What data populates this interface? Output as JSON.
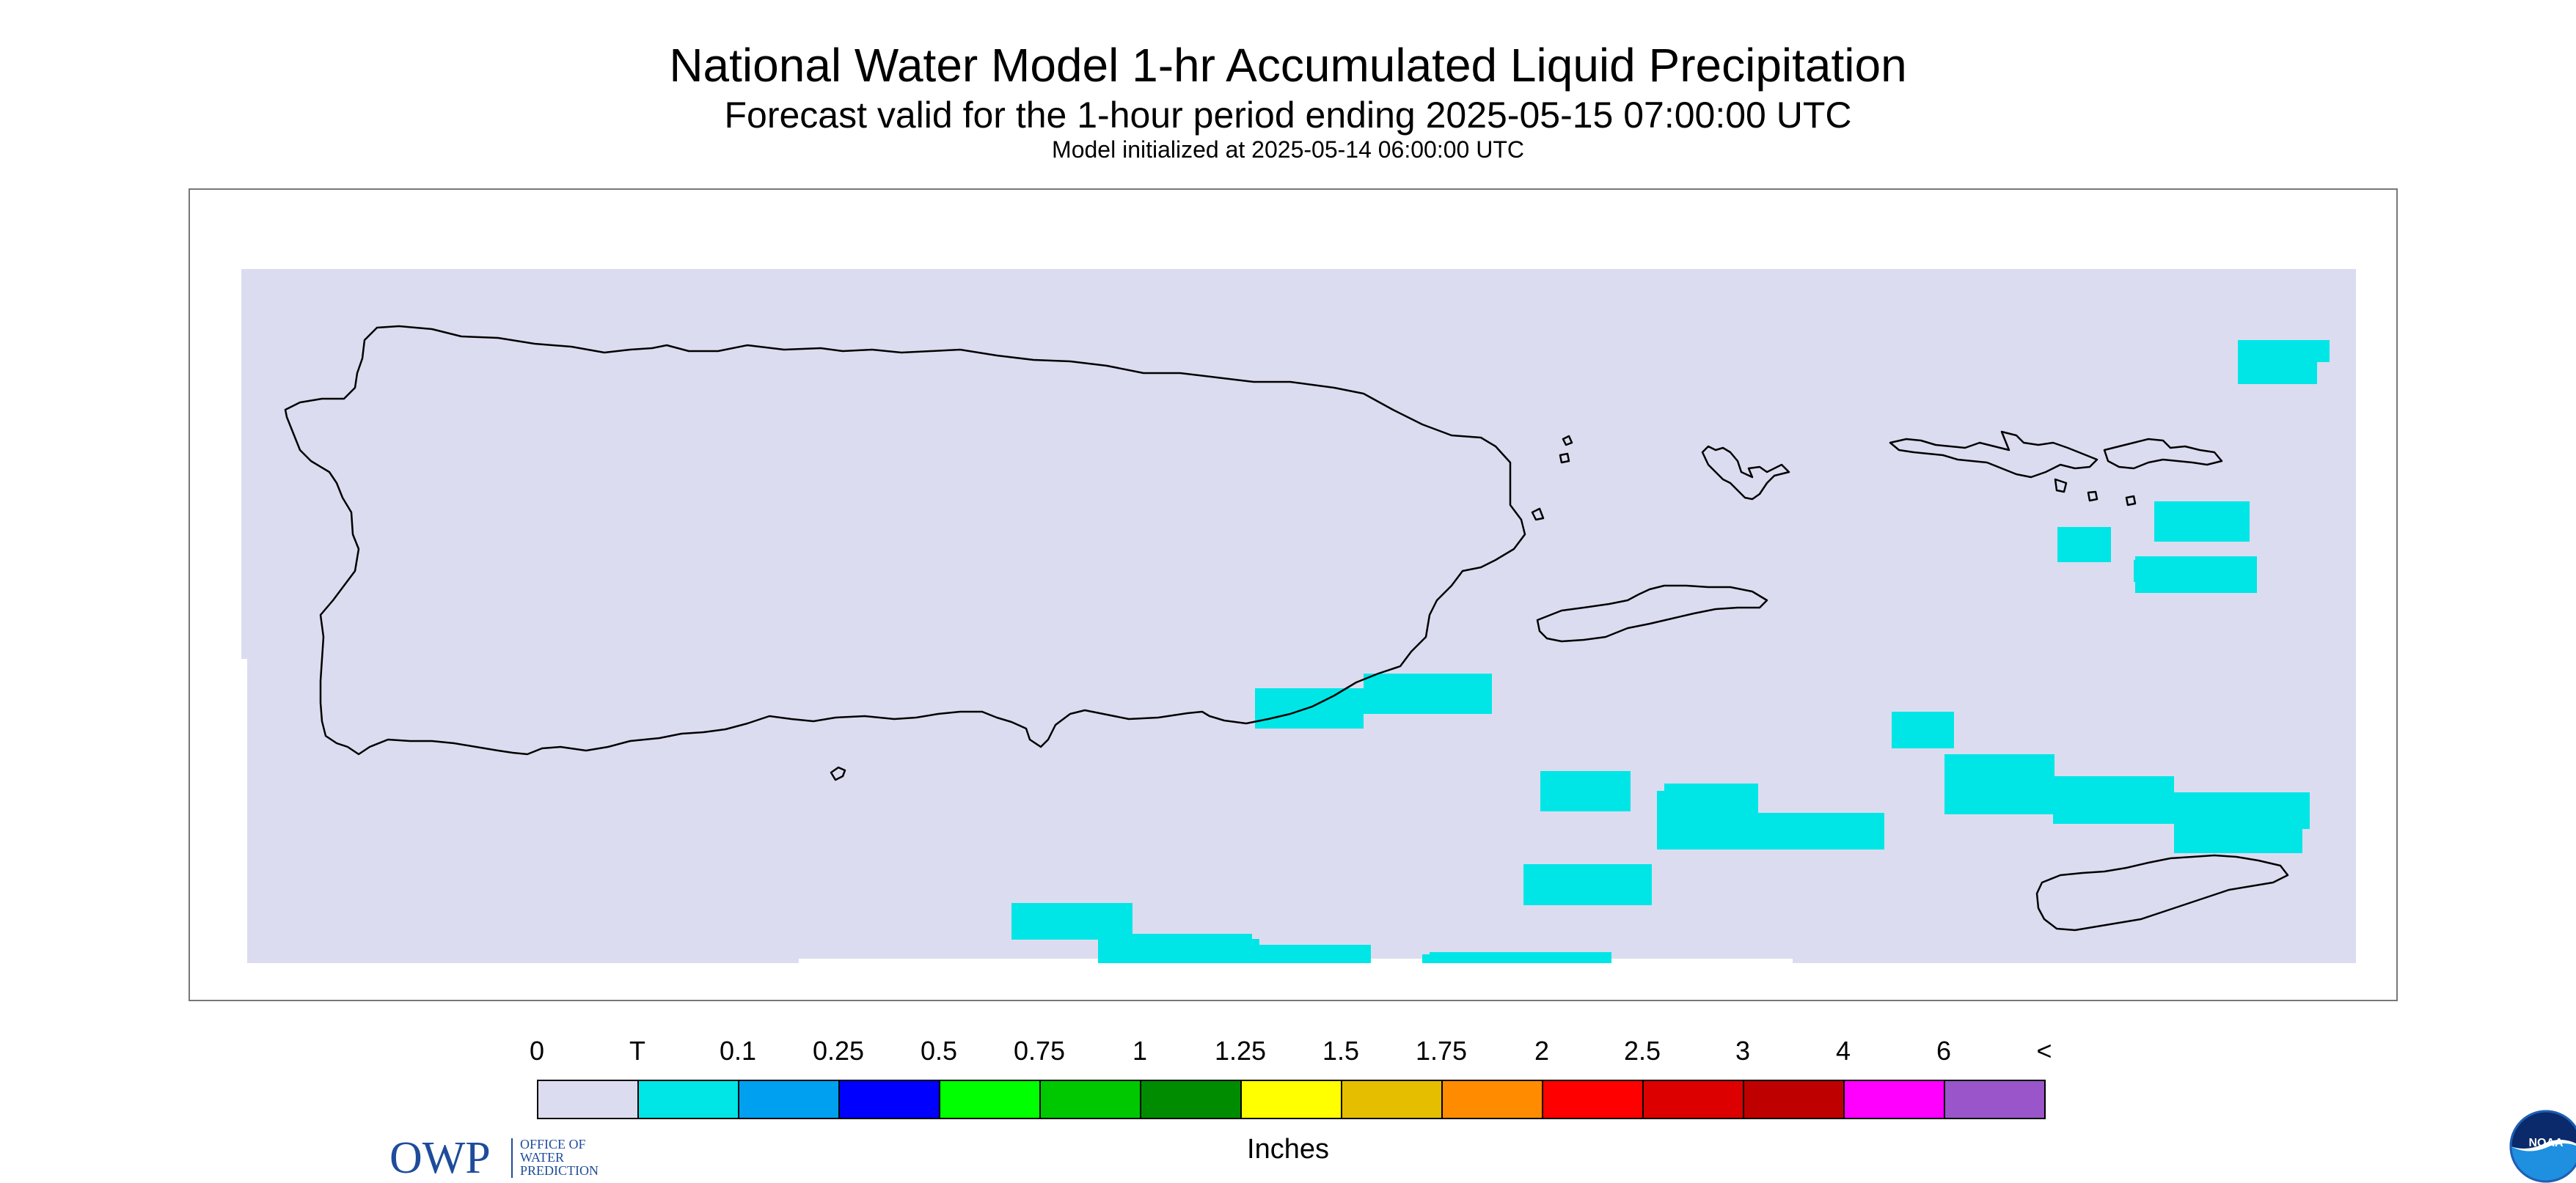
{
  "title": "National Water Model 1-hr Accumulated Liquid Precipitation",
  "subtitle": "Forecast valid for the 1-hour period ending 2025-05-15 07:00:00 UTC",
  "init_text": "Model initialized at 2025-05-14 06:00:00 UTC",
  "owp": {
    "letters": "OWP",
    "org_line1": "OFFICE OF",
    "org_line2": "WATER",
    "org_line3": "PREDICTION"
  },
  "noaa_text": "NOAA",
  "legend": {
    "labels": [
      "0",
      "T",
      "0.1",
      "0.25",
      "0.5",
      "0.75",
      "1",
      "1.25",
      "1.5",
      "1.75",
      "2",
      "2.5",
      "3",
      "4",
      "6",
      "<"
    ],
    "colors": [
      "#dcdcf0",
      "#00e6e6",
      "#00a0f0",
      "#0000ff",
      "#00ff00",
      "#00c800",
      "#008c00",
      "#ffff00",
      "#e6be00",
      "#ff8c00",
      "#ff0000",
      "#dc0000",
      "#be0000",
      "#ff00ff",
      "#9955c9"
    ],
    "units": "Inches"
  },
  "colors": {
    "background_field": "#dcdcf0",
    "trace_precip": "#00e6e6",
    "coastline": "#000000",
    "owp_blue": "#1e4c9a",
    "noaa_blue": "#1f5fb4"
  }
}
